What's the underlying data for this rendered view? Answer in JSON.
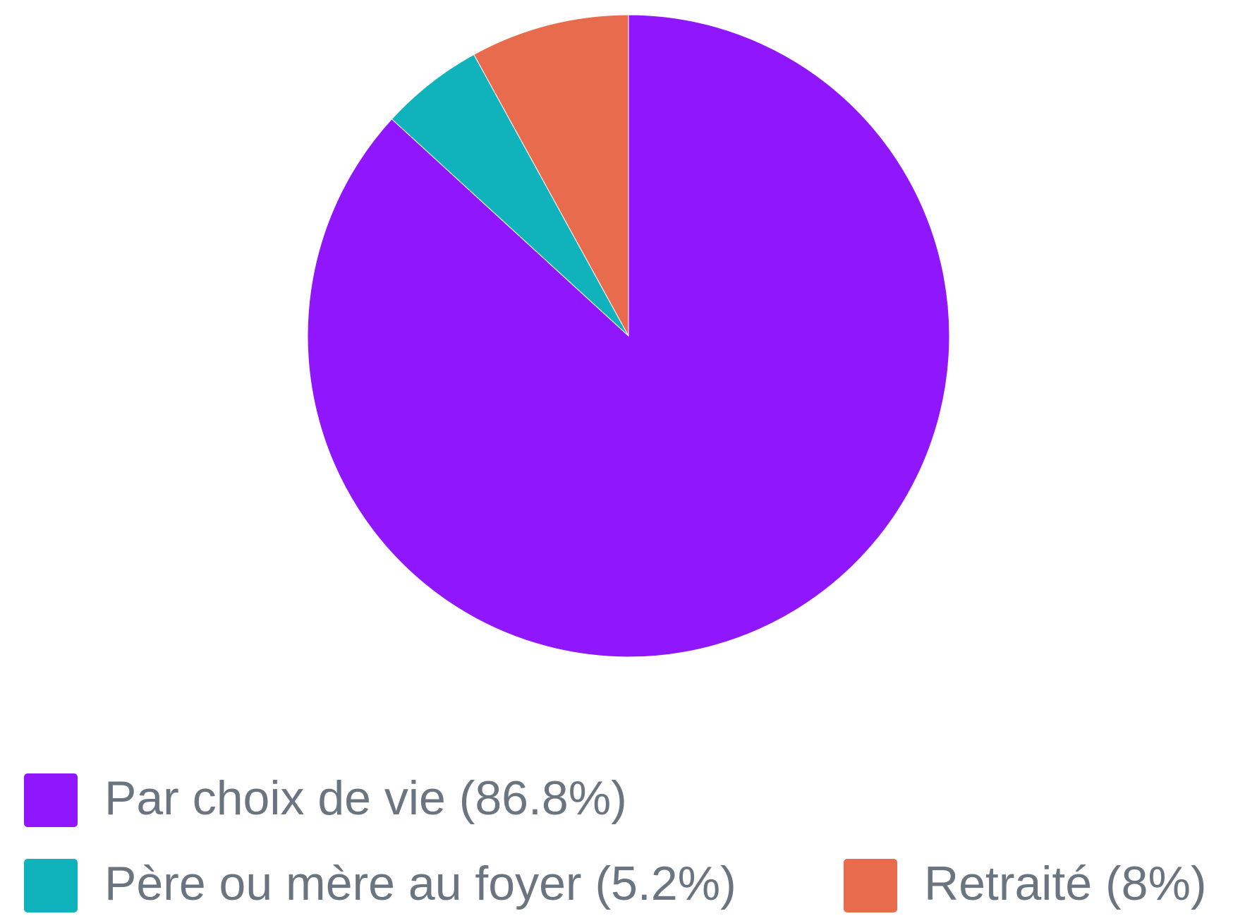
{
  "chart_data": {
    "type": "pie",
    "categories": [
      "Par choix de vie (86.8%)",
      "Père ou mère au foyer (5.2%)",
      "Retraité (8%)"
    ],
    "values": [
      86.8,
      5.2,
      8
    ],
    "colors": [
      "#8f16fd",
      "#10b2bb",
      "#e86b4d"
    ],
    "legend": "bottom"
  }
}
